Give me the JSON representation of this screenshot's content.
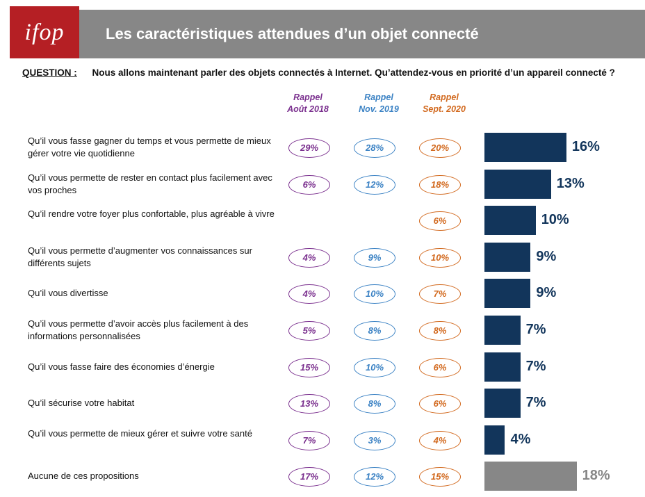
{
  "header": {
    "logo_text": "ifop",
    "title": "Les caractéristiques attendues d’un objet connecté"
  },
  "question": {
    "label": "QUESTION :",
    "text": "Nous allons maintenant parler des objets connectés à Internet. Qu’attendez-vous en priorité d’un appareil connecté ?"
  },
  "colors": {
    "header_bg": "#878787",
    "logo_bg": "#b51f24",
    "bar_main": "#12355b",
    "bar_none": "#878787",
    "aout2018": "#7a2f8e",
    "nov2019": "#3b82c4",
    "sept2020": "#d2691e"
  },
  "chart_data": {
    "type": "bar",
    "orientation": "horizontal",
    "columns": [
      {
        "key": "aout2018",
        "line1": "Rappel",
        "line2": "Août 2018"
      },
      {
        "key": "nov2019",
        "line1": "Rappel",
        "line2": "Nov. 2019"
      },
      {
        "key": "sept2020",
        "line1": "Rappel",
        "line2": "Sept. 2020"
      }
    ],
    "rows": [
      {
        "label": "Qu’il vous fasse gagner du temps et vous permette de mieux gérer votre vie quotidienne",
        "value": 16,
        "value_label": "16%",
        "aout2018": "29%",
        "nov2019": "28%",
        "sept2020": "20%"
      },
      {
        "label": "Qu’il vous permette de rester en contact plus facilement avec vos proches",
        "value": 13,
        "value_label": "13%",
        "aout2018": "6%",
        "nov2019": "12%",
        "sept2020": "18%"
      },
      {
        "label": "Qu’il rendre votre foyer plus confortable, plus agréable à vivre",
        "value": 10,
        "value_label": "10%",
        "aout2018": "",
        "nov2019": "",
        "sept2020": "6%"
      },
      {
        "label": "Qu’il vous permette d’augmenter vos connaissances sur différents sujets",
        "value": 9,
        "value_label": "9%",
        "aout2018": "4%",
        "nov2019": "9%",
        "sept2020": "10%"
      },
      {
        "label": "Qu’il vous divertisse",
        "value": 9,
        "value_label": "9%",
        "aout2018": "4%",
        "nov2019": "10%",
        "sept2020": "7%"
      },
      {
        "label": "Qu’il vous permette d’avoir accès plus facilement à des informations personnalisées",
        "value": 7,
        "value_label": "7%",
        "aout2018": "5%",
        "nov2019": "8%",
        "sept2020": "8%"
      },
      {
        "label": "Qu’il vous fasse faire des économies d’énergie",
        "value": 7,
        "value_label": "7%",
        "aout2018": "15%",
        "nov2019": "10%",
        "sept2020": "6%"
      },
      {
        "label": "Qu’il sécurise votre habitat",
        "value": 7,
        "value_label": "7%",
        "aout2018": "13%",
        "nov2019": "8%",
        "sept2020": "6%"
      },
      {
        "label": "Qu’il vous permette de mieux gérer et suivre votre santé",
        "value": 4,
        "value_label": "4%",
        "aout2018": "7%",
        "nov2019": "3%",
        "sept2020": "4%"
      },
      {
        "label": "Aucune de ces propositions",
        "value": 18,
        "value_label": "18%",
        "aout2018": "17%",
        "nov2019": "12%",
        "sept2020": "15%",
        "highlight": "none"
      }
    ]
  }
}
